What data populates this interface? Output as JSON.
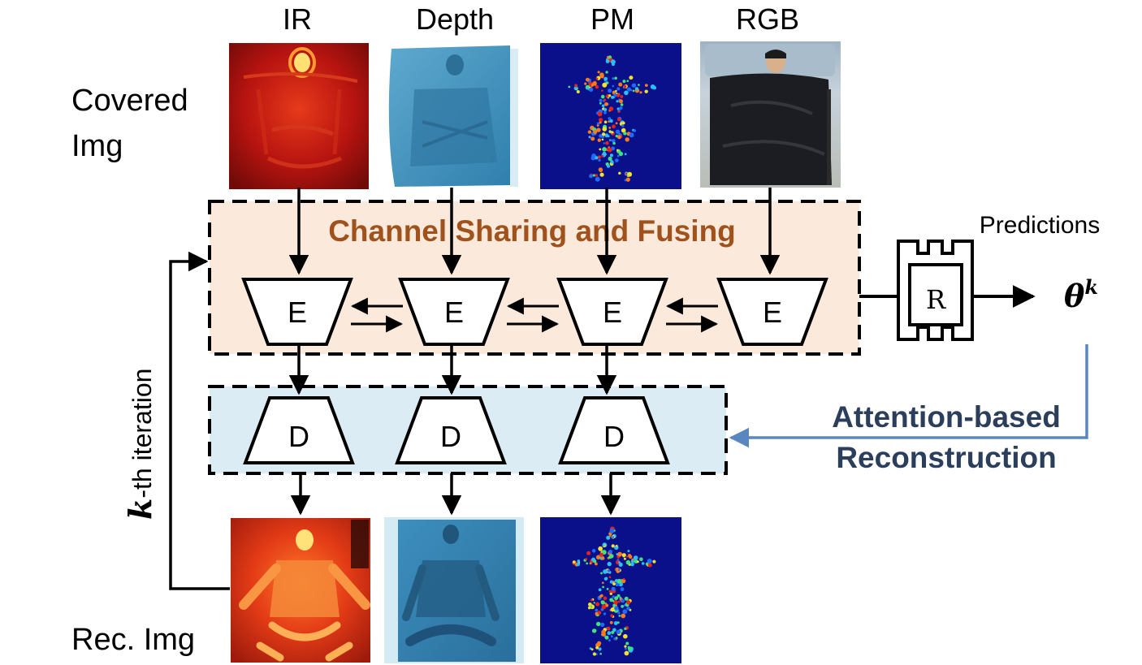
{
  "columns": {
    "ir": "IR",
    "depth": "Depth",
    "pm": "PM",
    "rgb": "RGB"
  },
  "rows": {
    "covered_line1": "Covered",
    "covered_line2": "Img",
    "reconstructed": "Rec. Img"
  },
  "fusion_block": {
    "title": "Channel Sharing and Fusing",
    "encoder_label": "E"
  },
  "decoder_block": {
    "decoder_label": "D"
  },
  "regressor": {
    "label": "R",
    "predictions_label": "Predictions",
    "output_symbol": "θ",
    "output_superscript": "k"
  },
  "reconstruction": {
    "line1": "Attention-based",
    "line2": "Reconstruction"
  },
  "iteration": {
    "symbol": "k",
    "label": "-th iteration"
  },
  "colors": {
    "fusion_fill": "#fbe9dc",
    "decoder_fill": "#dcecf4",
    "fusion_title": "#a0521d",
    "reconstruction_text": "#2b3f5c",
    "reconstruction_arrow": "#5b87c0"
  }
}
